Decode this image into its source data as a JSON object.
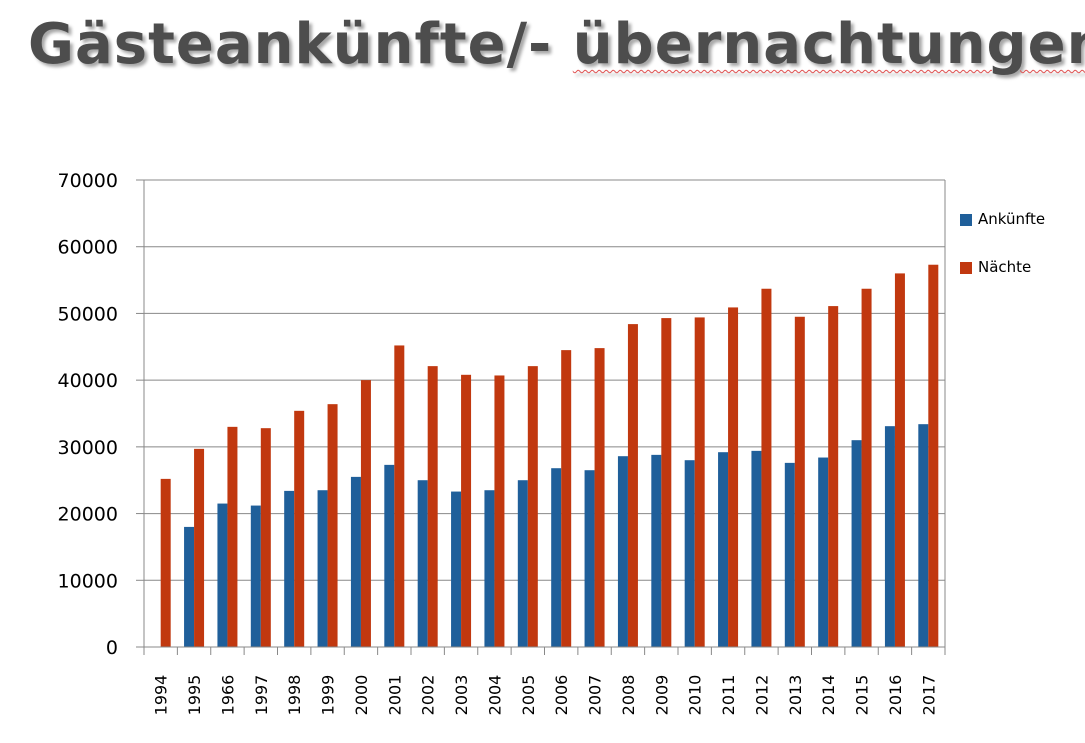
{
  "title": {
    "part1": "Gästeankünfte/- ",
    "part2": "übernachtungen"
  },
  "colors": {
    "ankuenfte": "#1f5f9a",
    "naechte": "#c1380f",
    "grid": "#888888",
    "title": "#4d4d4d"
  },
  "chart_data": {
    "type": "bar",
    "title": "Gästeankünfte/- übernachtungen",
    "xlabel": "",
    "ylabel": "",
    "ylim": [
      0,
      70000
    ],
    "yticks": [
      0,
      10000,
      20000,
      30000,
      40000,
      50000,
      60000,
      70000
    ],
    "grid": true,
    "legend_position": "right",
    "categories": [
      "1994",
      "1995",
      "1966",
      "1997",
      "1998",
      "1999",
      "2000",
      "2001",
      "2002",
      "2003",
      "2004",
      "2005",
      "2006",
      "2007",
      "2008",
      "2009",
      "2010",
      "2011",
      "2012",
      "2013",
      "2014",
      "2015",
      "2016",
      "2017"
    ],
    "series": [
      {
        "name": "Ankünfte",
        "values": [
          null,
          18000,
          21500,
          21200,
          23400,
          23500,
          25500,
          27300,
          25000,
          23300,
          23500,
          25000,
          26800,
          26500,
          28600,
          28800,
          28000,
          29200,
          29400,
          27600,
          28400,
          31000,
          33100,
          33400
        ]
      },
      {
        "name": "Nächte",
        "values": [
          25200,
          29700,
          33000,
          32800,
          35400,
          36400,
          40000,
          45200,
          42100,
          40800,
          40700,
          42100,
          44500,
          44800,
          48400,
          49300,
          49400,
          50900,
          53700,
          49500,
          51100,
          53700,
          56000,
          57300
        ]
      }
    ]
  }
}
